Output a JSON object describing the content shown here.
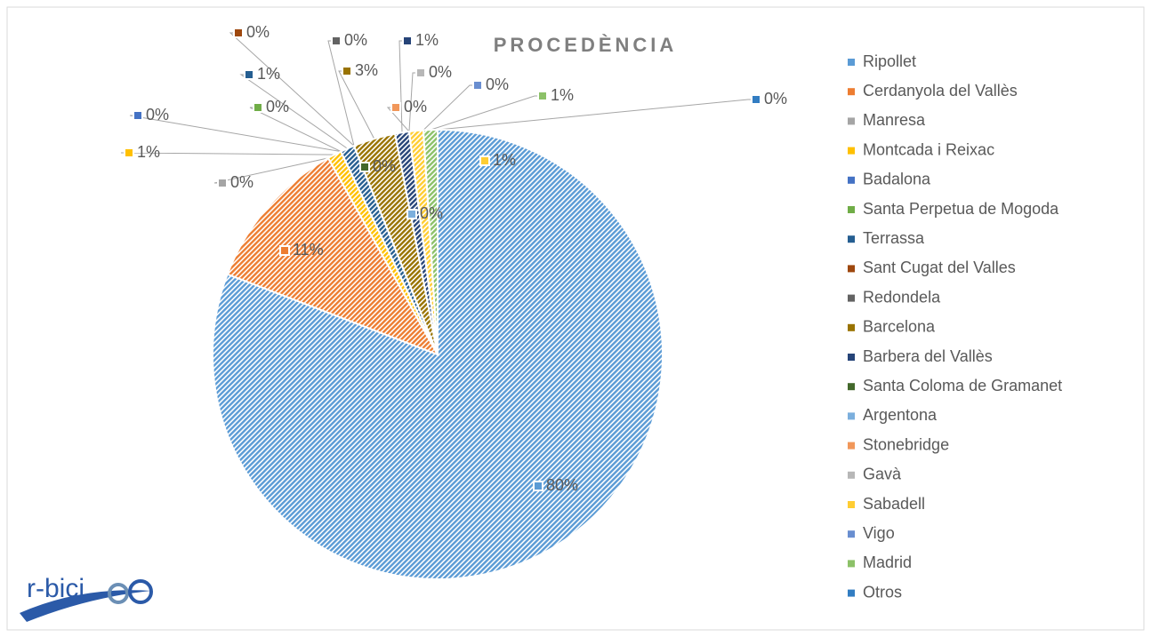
{
  "chart_data": {
    "type": "pie",
    "title": "PROCEDÈNCIA",
    "logo": "r-bici",
    "categories": [
      "Ripollet",
      "Cerdanyola del Vallès",
      "Manresa",
      "Montcada i Reixac",
      "Badalona",
      "Santa Perpetua de Mogoda",
      "Terrassa",
      "Sant Cugat del Valles",
      "Redondela",
      "Barcelona",
      "Barbera del Vallès",
      "Santa Coloma de Gramanet",
      "Argentona",
      "Stonebridge",
      "Gavà",
      "Sabadell",
      "Vigo",
      "Madrid",
      "Otros"
    ],
    "values": [
      80,
      11,
      0,
      1,
      0,
      0,
      1,
      0,
      0,
      3,
      1,
      0,
      0,
      0,
      0,
      1,
      0,
      1,
      0
    ],
    "value_labels": [
      "80%",
      "11%",
      "0%",
      "1%",
      "0%",
      "0%",
      "1%",
      "0%",
      "0%",
      "3%",
      "1%",
      "0%",
      "0%",
      "0%",
      "0%",
      "1%",
      "0%",
      "1%",
      "0%"
    ],
    "colors": [
      "#5b9bd5",
      "#ed7d31",
      "#a5a5a5",
      "#ffc000",
      "#4472c4",
      "#70ad47",
      "#255e91",
      "#9e480e",
      "#636363",
      "#997300",
      "#264478",
      "#43682b",
      "#7cafdd",
      "#f1975a",
      "#b7b7b7",
      "#ffcd33",
      "#698ed0",
      "#8cc168",
      "#327dc2"
    ],
    "legend": "right"
  }
}
